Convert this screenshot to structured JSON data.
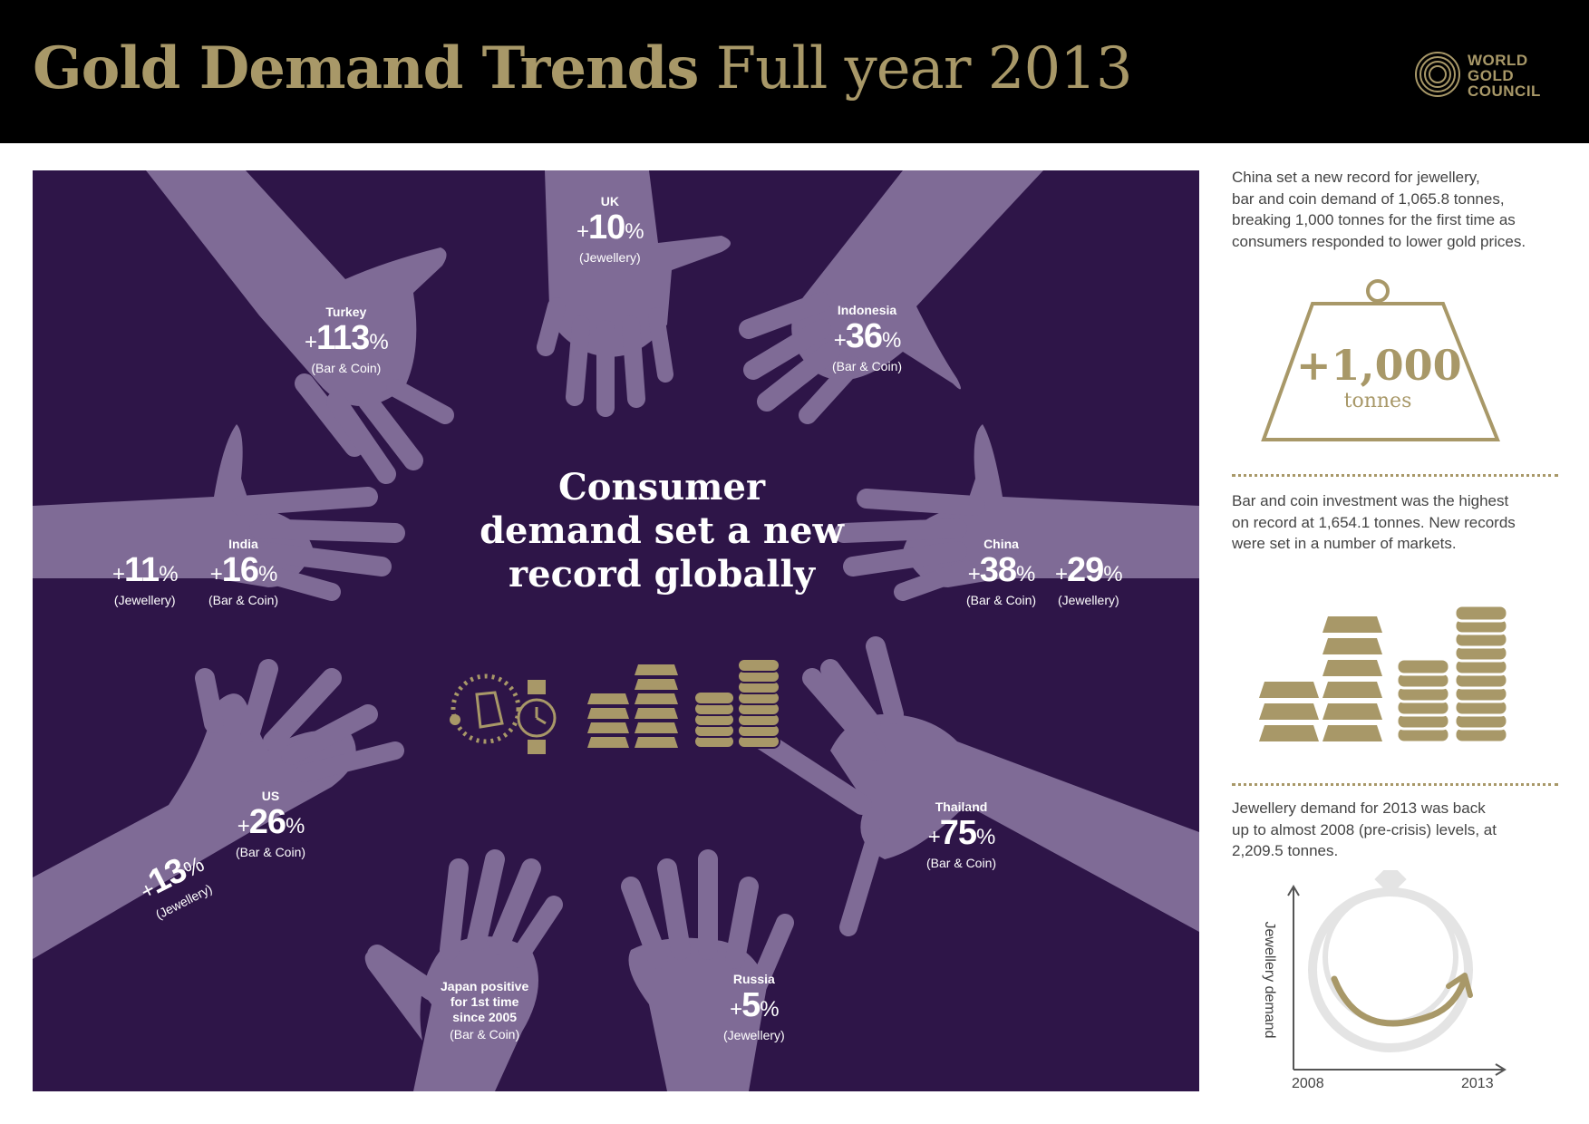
{
  "header": {
    "title_bold": "Gold Demand Trends",
    "title_rest": "Full year 2013",
    "logo_lines": [
      "WORLD",
      "GOLD",
      "COUNCIL"
    ]
  },
  "panel": {
    "center_text": [
      "Consumer",
      "demand set a new",
      "record globally"
    ],
    "hands": [
      {
        "country": "UK",
        "value": "10",
        "category": "(Jewellery)"
      },
      {
        "country": "Turkey",
        "value": "113",
        "category": "(Bar & Coin)"
      },
      {
        "country": "Indonesia",
        "value": "36",
        "category": "(Bar & Coin)"
      },
      {
        "country": "India",
        "value": "16",
        "category": "(Bar & Coin)",
        "extra_value": "11",
        "extra_category": "(Jewellery)"
      },
      {
        "country": "China",
        "value": "38",
        "category": "(Bar & Coin)",
        "extra_value": "29",
        "extra_category": "(Jewellery)"
      },
      {
        "country": "US",
        "value": "26",
        "category": "(Bar & Coin)",
        "extra_value": "13",
        "extra_category": "(Jewellery)"
      },
      {
        "country": "Thailand",
        "value": "75",
        "category": "(Bar & Coin)"
      },
      {
        "country_lines": [
          "Japan positive",
          "for 1st time",
          "since 2005"
        ],
        "category": "(Bar & Coin)"
      },
      {
        "country": "Russia",
        "value": "5",
        "category": "(Jewellery)"
      }
    ],
    "plus_sign": "+",
    "percent_sign": "%"
  },
  "sidebar": {
    "china_text": [
      "China set a new record for jewellery,",
      "bar and coin demand of 1,065.8 tonnes,",
      "breaking 1,000 tonnes for the first time as",
      "consumers responded to lower gold prices."
    ],
    "weight_value": "+1,000",
    "weight_unit": "tonnes",
    "bar_coin_text": [
      "Bar and coin investment was the highest",
      "on record at 1,654.1 tonnes. New records",
      "were set in a number of markets."
    ],
    "jewellery_text": [
      "Jewellery demand for 2013 was back",
      "up to almost 2008 (pre-crisis) levels, at",
      "2,209.5 tonnes."
    ],
    "chart_ylabel": "Jewellery demand",
    "chart_x_start": "2008",
    "chart_x_end": "2013"
  },
  "colors": {
    "header_bg": "#000000",
    "gold": "#a89868",
    "panel_bg": "#2e1548",
    "hand": "#7f6b96",
    "ring_grey": "#e4e4e4"
  },
  "icons": [
    "world-gold-council-logo-icon",
    "jewellery-icon",
    "gold-bars-icon",
    "gold-coins-icon",
    "weight-icon",
    "ring-icon"
  ]
}
